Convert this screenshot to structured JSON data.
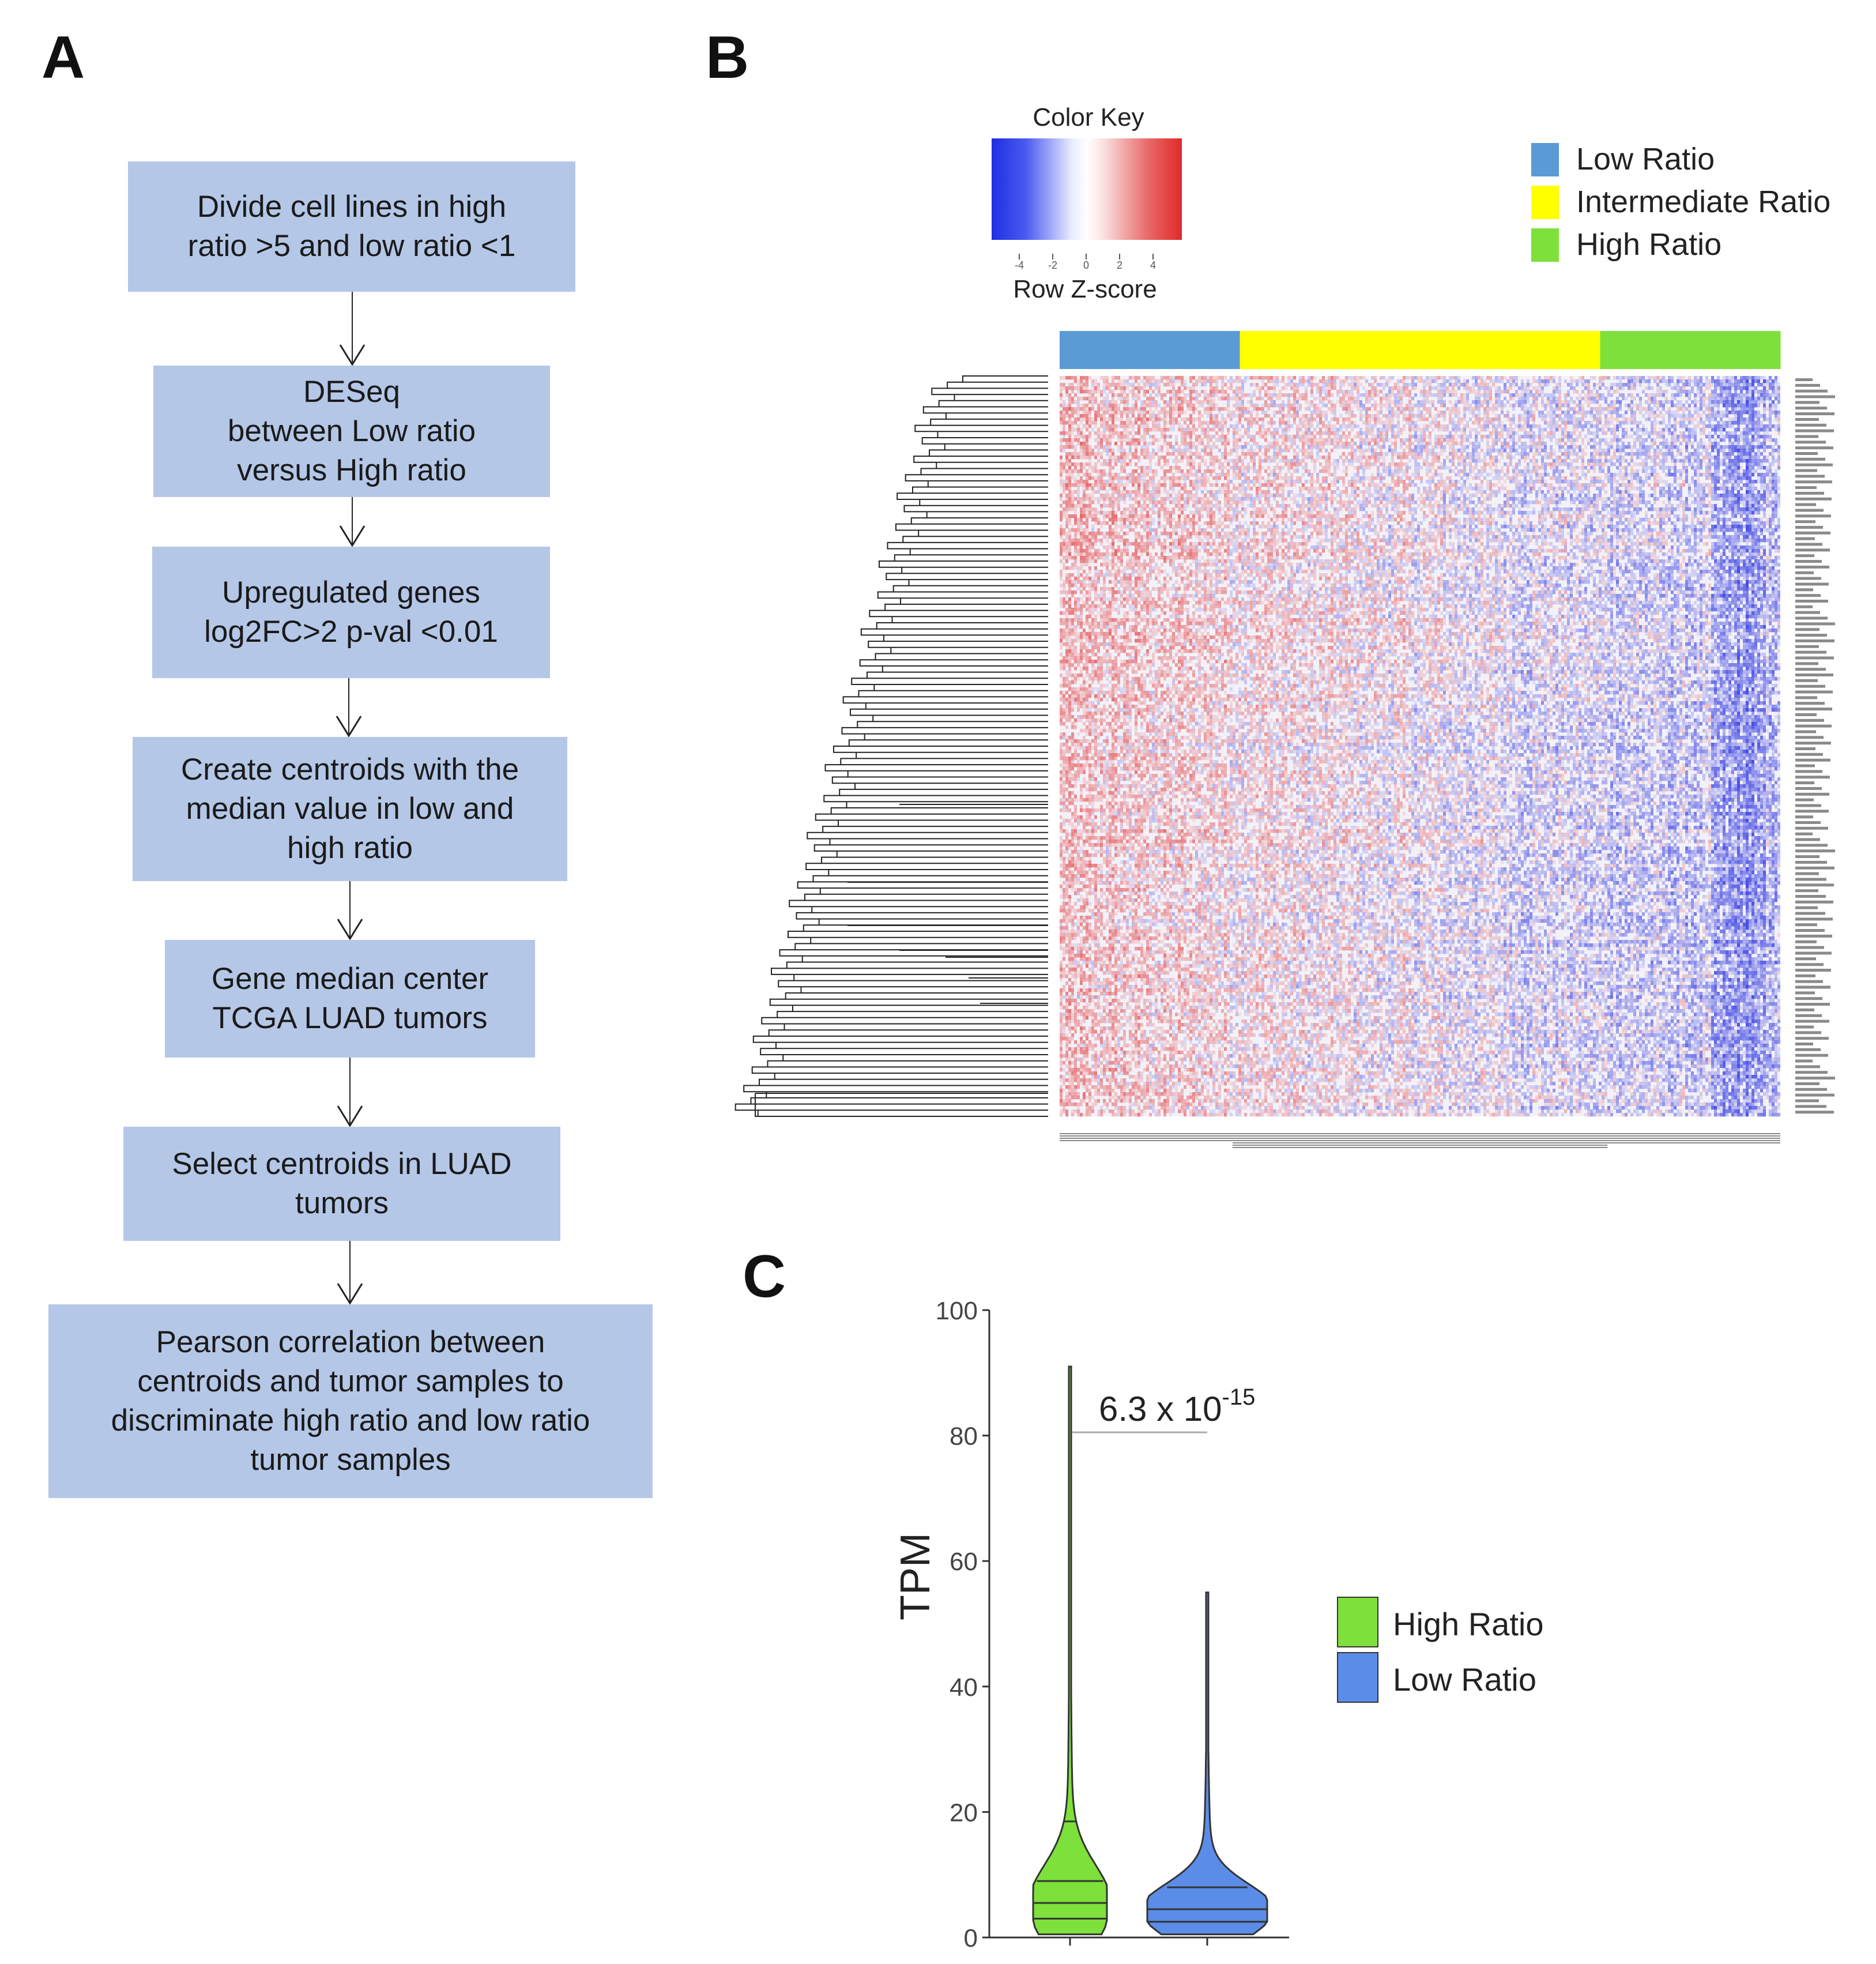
{
  "panels": {
    "a": "A",
    "b": "B",
    "c": "C"
  },
  "flowchart": {
    "steps": [
      {
        "text": "Divide cell lines in high\nratio >5 and low ratio <1"
      },
      {
        "text": "DESeq\nbetween Low ratio\nversus High ratio"
      },
      {
        "text": "Upregulated genes\nlog2FC>2 p-val <0.01"
      },
      {
        "text": "Create centroids with the\nmedian value in low and\nhigh ratio"
      },
      {
        "text": "Gene median center\nTCGA LUAD tumors"
      },
      {
        "text": "Select centroids in LUAD\ntumors"
      },
      {
        "text": "Pearson correlation between\ncentroids and tumor samples to\ndiscriminate high ratio and low ratio\ntumor samples"
      }
    ]
  },
  "heatmap": {
    "color_key_title": "Color Key",
    "color_key_subtitle": "Row Z-score",
    "color_key_ticks": [
      "-4",
      "-2",
      "0",
      "2",
      "4"
    ],
    "legend": [
      {
        "label": "Low Ratio",
        "color": "#5b9bd5"
      },
      {
        "label": "Intermediate Ratio",
        "color": "#ffff00"
      },
      {
        "label": "High Ratio",
        "color": "#7ee03a"
      }
    ],
    "groups": [
      {
        "name": "Low Ratio",
        "fraction": 0.25,
        "color": "#5b9bd5"
      },
      {
        "name": "Intermediate Ratio",
        "fraction": 0.5,
        "color": "#ffff00"
      },
      {
        "name": "High Ratio",
        "fraction": 0.25,
        "color": "#7ee03a"
      }
    ],
    "colors": {
      "low": "#2a2ae8",
      "mid": "#ffffff",
      "high": "#e83a3a"
    }
  },
  "chart_data": {
    "type": "violin",
    "ylabel": "TPM",
    "ylim": [
      0,
      100
    ],
    "yticks": [
      0,
      20,
      40,
      60,
      80,
      100
    ],
    "annotation": {
      "base": "6.3 x 10",
      "exponent": "-15"
    },
    "series": [
      {
        "name": "High Ratio",
        "color": "#7ee03a",
        "min": 0.5,
        "max": 91,
        "median": 5.5,
        "quartiles": [
          3,
          9,
          18.5
        ]
      },
      {
        "name": "Low Ratio",
        "color": "#5b8de8",
        "min": 0.5,
        "max": 55,
        "median": 4.5,
        "quartiles": [
          2.5,
          8
        ]
      }
    ]
  }
}
